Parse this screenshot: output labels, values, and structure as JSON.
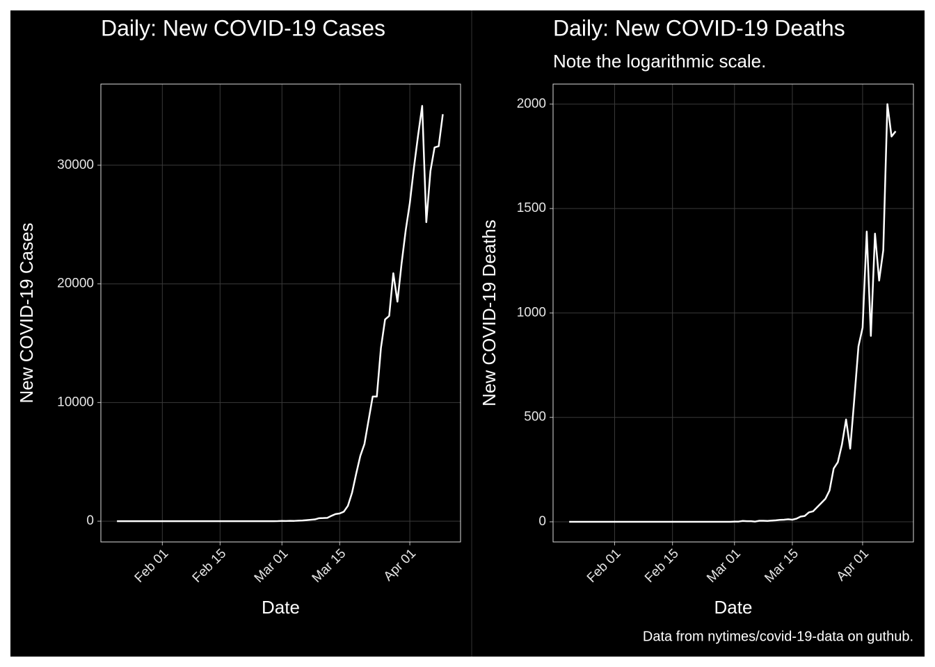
{
  "chart_data": [
    {
      "type": "line",
      "title": "Daily: New COVID-19 Cases",
      "x_label": "Date",
      "y_label": "New COVID-19 Cases",
      "categories": [
        null,
        null,
        null,
        null,
        null,
        null,
        null,
        null,
        null,
        null,
        null,
        "Feb 01",
        null,
        null,
        null,
        null,
        null,
        null,
        null,
        null,
        null,
        null,
        null,
        null,
        null,
        "Feb 15",
        null,
        null,
        null,
        null,
        null,
        null,
        null,
        null,
        null,
        null,
        null,
        null,
        null,
        null,
        "Mar 01",
        null,
        null,
        null,
        null,
        null,
        null,
        null,
        null,
        null,
        null,
        null,
        null,
        null,
        "Mar 15",
        null,
        null,
        null,
        null,
        null,
        null,
        null,
        null,
        null,
        null,
        null,
        null,
        null,
        null,
        null,
        null,
        "Apr 01",
        null,
        null,
        null,
        null,
        null,
        null,
        null,
        null
      ],
      "series": [
        {
          "name": "New COVID-19 Cases",
          "color": "#ffffff",
          "values": [
            1,
            0,
            0,
            1,
            0,
            1,
            0,
            0,
            0,
            1,
            2,
            1,
            0,
            0,
            0,
            0,
            0,
            0,
            1,
            0,
            0,
            0,
            0,
            0,
            0,
            1,
            0,
            0,
            0,
            0,
            0,
            0,
            0,
            0,
            2,
            0,
            0,
            3,
            1,
            5,
            20,
            15,
            30,
            25,
            40,
            60,
            90,
            120,
            150,
            250,
            260,
            280,
            450,
            600,
            650,
            800,
            1300,
            2400,
            4000,
            5500,
            6500,
            8500,
            10500,
            10500,
            14600,
            17000,
            17300,
            20900,
            18500,
            21700,
            24500,
            26800,
            29800,
            32500,
            35000,
            25200,
            29500,
            31500,
            31600,
            34300
          ]
        }
      ],
      "ylim": [
        -1750,
        36840
      ],
      "yticks": [
        0,
        10000,
        20000,
        30000
      ],
      "grid": true
    },
    {
      "type": "line",
      "title": "Daily: New COVID-19 Deaths",
      "subtitle": "Note the logarithmic scale.",
      "x_label": "Date",
      "y_label": "New COVID-19 Deaths",
      "caption": "Data from nytimes/covid-19-data on guthub.",
      "categories": [
        null,
        null,
        null,
        null,
        null,
        null,
        null,
        null,
        null,
        null,
        null,
        "Feb 01",
        null,
        null,
        null,
        null,
        null,
        null,
        null,
        null,
        null,
        null,
        null,
        null,
        null,
        "Feb 15",
        null,
        null,
        null,
        null,
        null,
        null,
        null,
        null,
        null,
        null,
        null,
        null,
        null,
        null,
        "Mar 01",
        null,
        null,
        null,
        null,
        null,
        null,
        null,
        null,
        null,
        null,
        null,
        null,
        null,
        "Mar 15",
        null,
        null,
        null,
        null,
        null,
        null,
        null,
        null,
        null,
        null,
        null,
        null,
        null,
        null,
        null,
        null,
        "Apr 01",
        null,
        null,
        null,
        null,
        null,
        null,
        null,
        null
      ],
      "series": [
        {
          "name": "New COVID-19 Deaths",
          "color": "#ffffff",
          "values": [
            0,
            0,
            0,
            0,
            0,
            0,
            0,
            0,
            0,
            0,
            0,
            0,
            0,
            0,
            0,
            0,
            0,
            0,
            0,
            0,
            0,
            0,
            0,
            0,
            0,
            0,
            0,
            0,
            0,
            0,
            0,
            0,
            0,
            0,
            0,
            0,
            0,
            0,
            0,
            0,
            1,
            1,
            4,
            3,
            3,
            1,
            5,
            5,
            4,
            6,
            7,
            9,
            10,
            12,
            10,
            15,
            25,
            28,
            45,
            50,
            70,
            90,
            110,
            150,
            255,
            285,
            370,
            490,
            350,
            590,
            840,
            930,
            1390,
            890,
            1380,
            1155,
            1300,
            2000,
            1845,
            1870
          ]
        }
      ],
      "ylim": [
        -96.5,
        2096
      ],
      "yticks": [
        0,
        500,
        1000,
        1500,
        2000
      ],
      "grid": true
    }
  ]
}
